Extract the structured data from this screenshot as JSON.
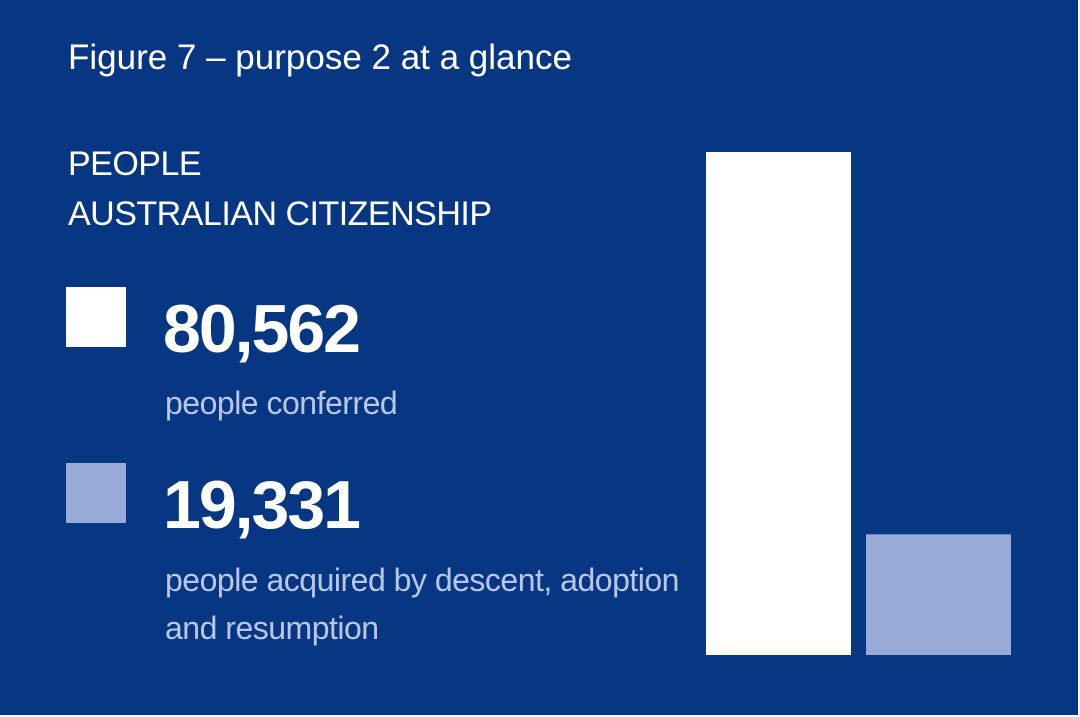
{
  "chart_data": {
    "type": "bar",
    "title": "Figure 7 – purpose 2 at a glance",
    "subtitle": [
      "PEOPLE",
      "AUSTRALIAN CITIZENSHIP"
    ],
    "categories": [
      "people conferred",
      "people acquired by descent, adoption and resumption"
    ],
    "values": [
      80562,
      19331
    ],
    "value_labels": [
      "80,562",
      "19,331"
    ],
    "colors": [
      "#ffffff",
      "#97abd6"
    ]
  }
}
